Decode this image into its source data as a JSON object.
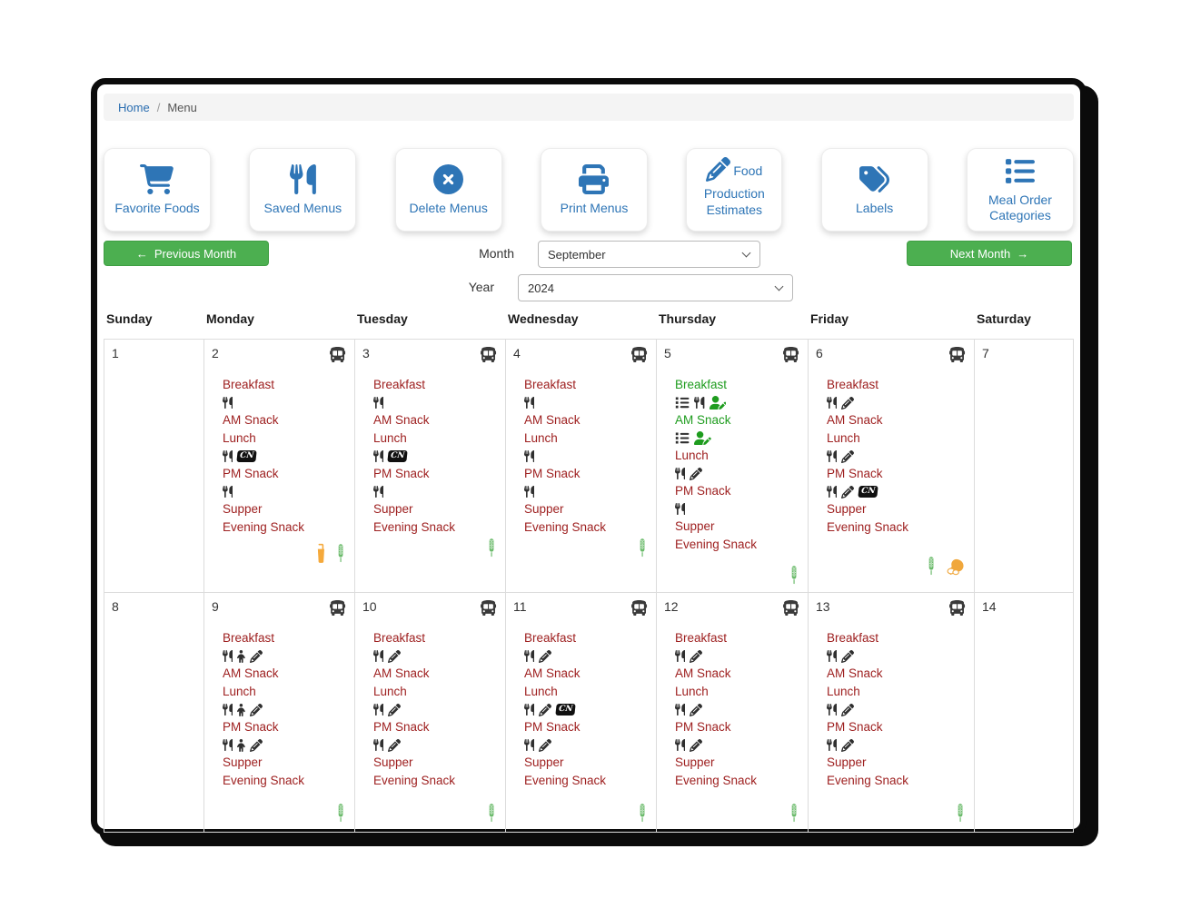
{
  "breadcrumb": {
    "home": "Home",
    "separator": "/",
    "current": "Menu"
  },
  "toolbar": [
    {
      "id": "favorite-foods",
      "icon": "cart-icon",
      "label": "Favorite Foods",
      "inline": false
    },
    {
      "id": "saved-menus",
      "icon": "utensils-icon",
      "label": "Saved Menus",
      "inline": false
    },
    {
      "id": "delete-menus",
      "icon": "delete-circle-icon",
      "label": "Delete Menus",
      "inline": false
    },
    {
      "id": "print-menus",
      "icon": "printer-icon",
      "label": "Print Menus",
      "inline": false
    },
    {
      "id": "food-production-estimates",
      "icon": "pencil-icon",
      "label": "Food Production Estimates",
      "inline": true
    },
    {
      "id": "labels",
      "icon": "tags-icon",
      "label": "Labels",
      "inline": false
    },
    {
      "id": "meal-order-categories",
      "icon": "list-icon",
      "label": "Meal Order Categories",
      "inline": false
    }
  ],
  "controls": {
    "previous_label": "Previous Month",
    "next_label": "Next Month",
    "prev_arrow": "←",
    "next_arrow": "→",
    "month_label": "Month",
    "month_value": "September",
    "year_label": "Year",
    "year_value": "2024"
  },
  "icon_glyphs": {
    "cn": "CN"
  },
  "colors": {
    "accent_blue": "#2e75b6",
    "button_green": "#4caf50",
    "meal_red": "#9e2020",
    "meal_green": "#1e9c1e",
    "wheat_green": "#6cbb6c",
    "warn_orange": "#f5a93b",
    "dark_icon": "#3a3a3a"
  },
  "calendar": {
    "day_headers": [
      "Sunday",
      "Monday",
      "Tuesday",
      "Wednesday",
      "Thursday",
      "Friday",
      "Saturday"
    ],
    "weeks": [
      [
        {
          "day": "1",
          "bus": false,
          "meals": [],
          "footer": []
        },
        {
          "day": "2",
          "bus": true,
          "meals": [
            {
              "name": "Breakfast",
              "tone": "red",
              "icons": [
                "utensils-icon"
              ]
            },
            {
              "name": "AM Snack",
              "tone": "red",
              "icons": []
            },
            {
              "name": "Lunch",
              "tone": "red",
              "icons": [
                "utensils-icon",
                "cn-icon"
              ]
            },
            {
              "name": "PM Snack",
              "tone": "red",
              "icons": [
                "utensils-icon"
              ]
            },
            {
              "name": "Supper",
              "tone": "red",
              "icons": []
            },
            {
              "name": "Evening Snack",
              "tone": "red",
              "icons": []
            }
          ],
          "footer": [
            "juice-icon",
            "wheat-icon"
          ]
        },
        {
          "day": "3",
          "bus": true,
          "meals": [
            {
              "name": "Breakfast",
              "tone": "red",
              "icons": [
                "utensils-icon"
              ]
            },
            {
              "name": "AM Snack",
              "tone": "red",
              "icons": []
            },
            {
              "name": "Lunch",
              "tone": "red",
              "icons": [
                "utensils-icon",
                "cn-icon"
              ]
            },
            {
              "name": "PM Snack",
              "tone": "red",
              "icons": [
                "utensils-icon"
              ]
            },
            {
              "name": "Supper",
              "tone": "red",
              "icons": []
            },
            {
              "name": "Evening Snack",
              "tone": "red",
              "icons": []
            }
          ],
          "footer": [
            "wheat-icon"
          ]
        },
        {
          "day": "4",
          "bus": true,
          "meals": [
            {
              "name": "Breakfast",
              "tone": "red",
              "icons": [
                "utensils-icon"
              ]
            },
            {
              "name": "AM Snack",
              "tone": "red",
              "icons": []
            },
            {
              "name": "Lunch",
              "tone": "red",
              "icons": [
                "utensils-icon"
              ]
            },
            {
              "name": "PM Snack",
              "tone": "red",
              "icons": [
                "utensils-icon"
              ]
            },
            {
              "name": "Supper",
              "tone": "red",
              "icons": []
            },
            {
              "name": "Evening Snack",
              "tone": "red",
              "icons": []
            }
          ],
          "footer": [
            "wheat-icon"
          ]
        },
        {
          "day": "5",
          "bus": true,
          "meals": [
            {
              "name": "Breakfast",
              "tone": "green",
              "icons": [
                "numbered-list-icon",
                "utensils-icon",
                "user-edit-icon"
              ]
            },
            {
              "name": "AM Snack",
              "tone": "green",
              "icons": [
                "numbered-list-icon",
                "user-edit-icon"
              ]
            },
            {
              "name": "Lunch",
              "tone": "red",
              "icons": [
                "utensils-icon",
                "pencil-icon"
              ]
            },
            {
              "name": "PM Snack",
              "tone": "red",
              "icons": [
                "utensils-icon"
              ]
            },
            {
              "name": "Supper",
              "tone": "red",
              "icons": []
            },
            {
              "name": "Evening Snack",
              "tone": "red",
              "icons": []
            }
          ],
          "footer": [
            "wheat-icon"
          ]
        },
        {
          "day": "6",
          "bus": true,
          "meals": [
            {
              "name": "Breakfast",
              "tone": "red",
              "icons": [
                "utensils-icon",
                "pencil-icon"
              ]
            },
            {
              "name": "AM Snack",
              "tone": "red",
              "icons": []
            },
            {
              "name": "Lunch",
              "tone": "red",
              "icons": [
                "utensils-icon",
                "pencil-icon"
              ]
            },
            {
              "name": "PM Snack",
              "tone": "red",
              "icons": [
                "utensils-icon",
                "pencil-icon",
                "cn-icon"
              ]
            },
            {
              "name": "Supper",
              "tone": "red",
              "icons": []
            },
            {
              "name": "Evening Snack",
              "tone": "red",
              "icons": []
            }
          ],
          "footer": [
            "wheat-icon",
            "meat-eggs-icon"
          ]
        },
        {
          "day": "7",
          "bus": false,
          "meals": [],
          "footer": []
        }
      ],
      [
        {
          "day": "8",
          "bus": false,
          "meals": [],
          "footer": []
        },
        {
          "day": "9",
          "bus": true,
          "meals": [
            {
              "name": "Breakfast",
              "tone": "red",
              "icons": [
                "utensils-icon",
                "child-icon",
                "pencil-icon"
              ]
            },
            {
              "name": "AM Snack",
              "tone": "red",
              "icons": []
            },
            {
              "name": "Lunch",
              "tone": "red",
              "icons": [
                "utensils-icon",
                "child-icon",
                "pencil-icon"
              ]
            },
            {
              "name": "PM Snack",
              "tone": "red",
              "icons": [
                "utensils-icon",
                "child-icon",
                "pencil-icon"
              ]
            },
            {
              "name": "Supper",
              "tone": "red",
              "icons": []
            },
            {
              "name": "Evening Snack",
              "tone": "red",
              "icons": []
            }
          ],
          "footer": [
            "wheat-icon"
          ]
        },
        {
          "day": "10",
          "bus": true,
          "meals": [
            {
              "name": "Breakfast",
              "tone": "red",
              "icons": [
                "utensils-icon",
                "pencil-icon"
              ]
            },
            {
              "name": "AM Snack",
              "tone": "red",
              "icons": []
            },
            {
              "name": "Lunch",
              "tone": "red",
              "icons": [
                "utensils-icon",
                "pencil-icon"
              ]
            },
            {
              "name": "PM Snack",
              "tone": "red",
              "icons": [
                "utensils-icon",
                "pencil-icon"
              ]
            },
            {
              "name": "Supper",
              "tone": "red",
              "icons": []
            },
            {
              "name": "Evening Snack",
              "tone": "red",
              "icons": []
            }
          ],
          "footer": [
            "wheat-icon"
          ]
        },
        {
          "day": "11",
          "bus": true,
          "meals": [
            {
              "name": "Breakfast",
              "tone": "red",
              "icons": [
                "utensils-icon",
                "pencil-icon"
              ]
            },
            {
              "name": "AM Snack",
              "tone": "red",
              "icons": []
            },
            {
              "name": "Lunch",
              "tone": "red",
              "icons": [
                "utensils-icon",
                "pencil-icon",
                "cn-icon"
              ]
            },
            {
              "name": "PM Snack",
              "tone": "red",
              "icons": [
                "utensils-icon",
                "pencil-icon"
              ]
            },
            {
              "name": "Supper",
              "tone": "red",
              "icons": []
            },
            {
              "name": "Evening Snack",
              "tone": "red",
              "icons": []
            }
          ],
          "footer": [
            "wheat-icon"
          ]
        },
        {
          "day": "12",
          "bus": true,
          "meals": [
            {
              "name": "Breakfast",
              "tone": "red",
              "icons": [
                "utensils-icon",
                "pencil-icon"
              ]
            },
            {
              "name": "AM Snack",
              "tone": "red",
              "icons": []
            },
            {
              "name": "Lunch",
              "tone": "red",
              "icons": [
                "utensils-icon",
                "pencil-icon"
              ]
            },
            {
              "name": "PM Snack",
              "tone": "red",
              "icons": [
                "utensils-icon",
                "pencil-icon"
              ]
            },
            {
              "name": "Supper",
              "tone": "red",
              "icons": []
            },
            {
              "name": "Evening Snack",
              "tone": "red",
              "icons": []
            }
          ],
          "footer": [
            "wheat-icon"
          ]
        },
        {
          "day": "13",
          "bus": true,
          "meals": [
            {
              "name": "Breakfast",
              "tone": "red",
              "icons": [
                "utensils-icon",
                "pencil-icon"
              ]
            },
            {
              "name": "AM Snack",
              "tone": "red",
              "icons": []
            },
            {
              "name": "Lunch",
              "tone": "red",
              "icons": [
                "utensils-icon",
                "pencil-icon"
              ]
            },
            {
              "name": "PM Snack",
              "tone": "red",
              "icons": [
                "utensils-icon",
                "pencil-icon"
              ]
            },
            {
              "name": "Supper",
              "tone": "red",
              "icons": []
            },
            {
              "name": "Evening Snack",
              "tone": "red",
              "icons": []
            }
          ],
          "footer": [
            "wheat-icon"
          ]
        },
        {
          "day": "14",
          "bus": false,
          "meals": [],
          "footer": []
        }
      ]
    ]
  }
}
